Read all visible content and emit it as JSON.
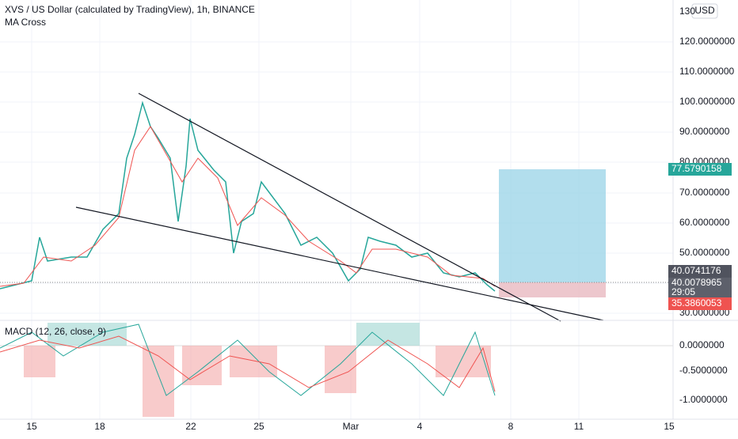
{
  "header": {
    "title": "XVS / US Dollar (calculated by TradingView), 1h, BINANCE",
    "indicator": "MA Cross",
    "currency": "USD"
  },
  "price_axis": [
    "130",
    "120.0000000",
    "110.0000000",
    "100.0000000",
    "90.0000000",
    "80.0000000",
    "70.0000000",
    "60.0000000",
    "50.0000000",
    "30.0000000"
  ],
  "badges": {
    "target": "77.5790158",
    "high": "40.0741176",
    "last": "40.0078965",
    "countdown": "29:05",
    "stop": "35.3860053"
  },
  "macd": {
    "label": "MACD (12, 26, close, 9)",
    "axis": [
      "0.0000000",
      "-0.5000000",
      "-1.0000000"
    ]
  },
  "time_axis": [
    "15",
    "18",
    "22",
    "25",
    "Mar",
    "4",
    "8",
    "11",
    "15"
  ]
}
